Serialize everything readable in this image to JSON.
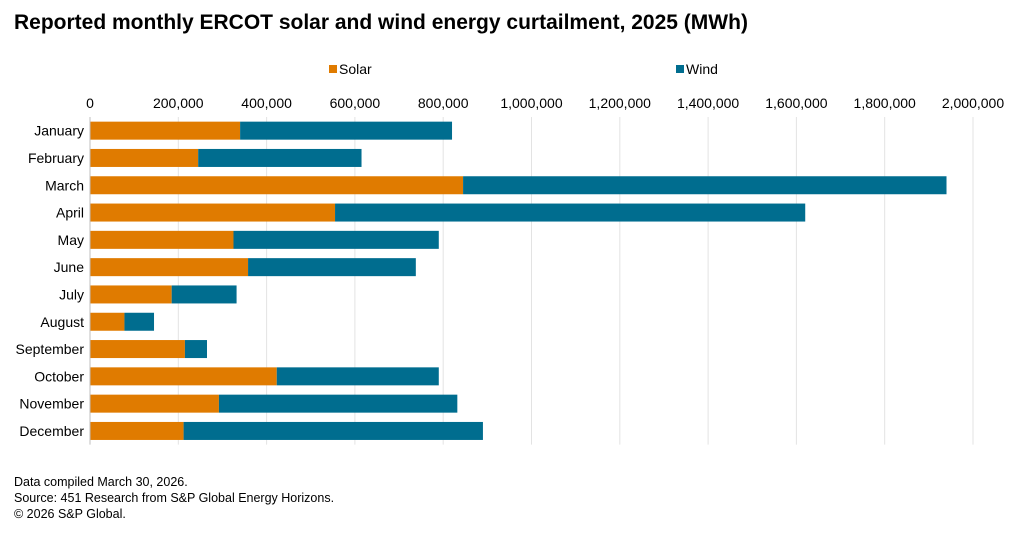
{
  "title": "Reported monthly ERCOT solar and wind energy curtailment, 2025 (MWh)",
  "legend": [
    {
      "name": "Solar",
      "color": "#e07b00"
    },
    {
      "name": "Wind",
      "color": "#006d8f"
    }
  ],
  "footer": {
    "line1": "Data compiled March 30, 2026.",
    "line2": "Source: 451 Research from S&P Global Energy Horizons.",
    "line3": "© 2026 S&P Global."
  },
  "chart_data": {
    "type": "bar",
    "orientation": "horizontal",
    "stacked": true,
    "categories": [
      "January",
      "February",
      "March",
      "April",
      "May",
      "June",
      "July",
      "August",
      "September",
      "October",
      "November",
      "December"
    ],
    "series": [
      {
        "name": "Solar",
        "color": "#e07b00",
        "values": [
          340000,
          245000,
          845000,
          555000,
          325000,
          358000,
          185000,
          78000,
          215000,
          423000,
          292000,
          212000
        ]
      },
      {
        "name": "Wind",
        "color": "#006d8f",
        "values": [
          480000,
          370000,
          1095000,
          1065000,
          465000,
          380000,
          147000,
          67000,
          50000,
          367000,
          540000,
          678000
        ]
      }
    ],
    "xlim": [
      0,
      2000000
    ],
    "xticks": [
      0,
      200000,
      400000,
      600000,
      800000,
      1000000,
      1200000,
      1400000,
      1600000,
      1800000,
      2000000
    ],
    "xtick_labels": [
      "0",
      "200,000",
      "400,000",
      "600,000",
      "800,000",
      "1,000,000",
      "1,200,000",
      "1,400,000",
      "1,600,000",
      "1,800,000",
      "2,000,000"
    ],
    "axis_position": "top",
    "legend_position": "top",
    "grid": true
  }
}
